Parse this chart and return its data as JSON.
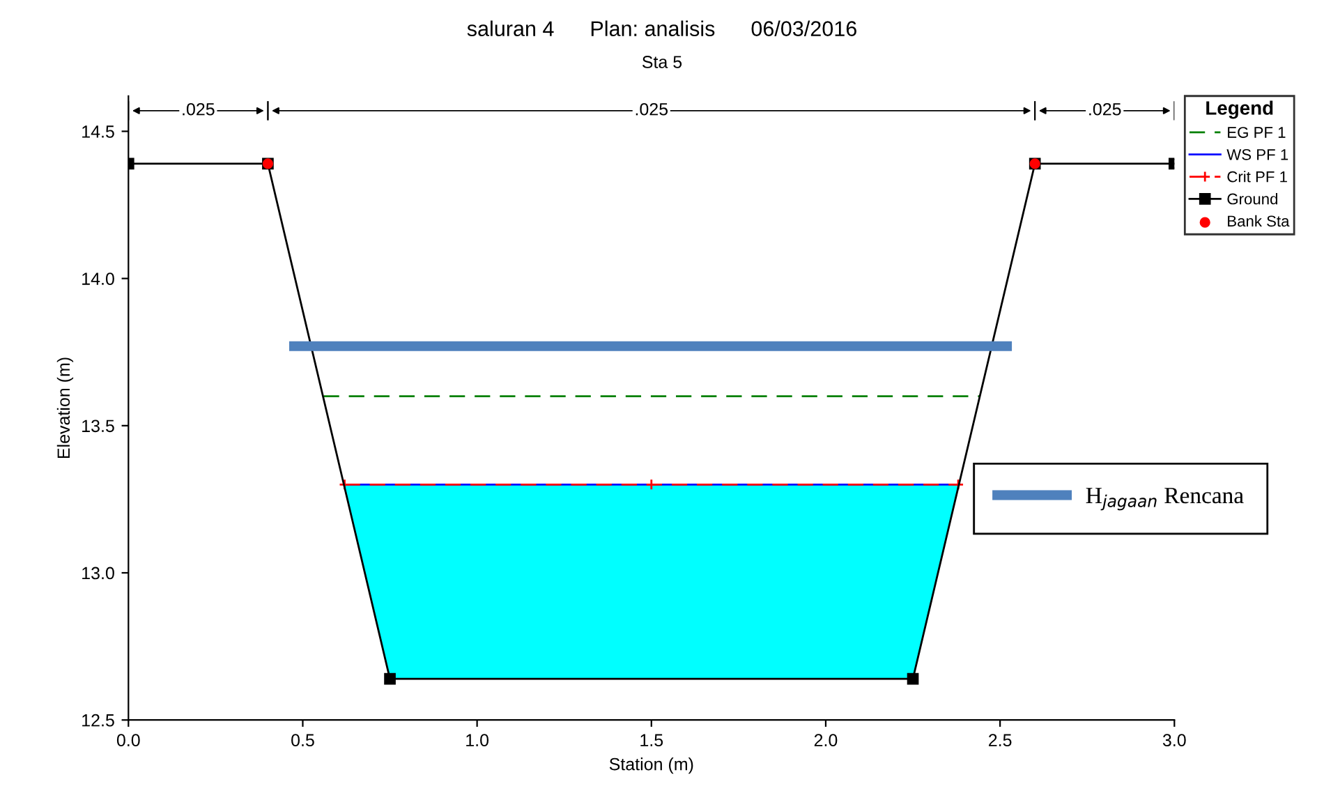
{
  "chart_data": {
    "type": "line",
    "title": "saluran 4      Plan: analisis      06/03/2016",
    "subtitle": "Sta 5",
    "xlabel": "Station (m)",
    "ylabel": "Elevation (m)",
    "xlim": [
      0,
      3.0
    ],
    "ylim": [
      12.5,
      14.62
    ],
    "xticks": [
      {
        "value": 0,
        "label": "0.0"
      },
      0.5,
      {
        "value": 1,
        "label": "1.0"
      },
      1.5,
      {
        "value": 2,
        "label": "2.0"
      },
      2.5,
      {
        "value": 3,
        "label": "3.0"
      }
    ],
    "yticks": [
      12.5,
      {
        "value": 13,
        "label": "13.0"
      },
      13.5,
      {
        "value": 14,
        "label": "14.0"
      },
      14.5
    ],
    "grid": false,
    "legend": "right",
    "legend_title": "Legend",
    "annotations": [
      {
        "text": ".025",
        "x": 0.2,
        "y": 14.57
      },
      {
        "text": ".025",
        "x": 1.5,
        "y": 14.57
      },
      {
        "text": ".025",
        "x": 2.8,
        "y": 14.57
      }
    ],
    "series": [
      {
        "name": "EG PF 1",
        "color": "#008000",
        "line_style": "dashed",
        "marker": "none",
        "x": [
          0.56,
          2.44
        ],
        "values": [
          13.6,
          13.6
        ]
      },
      {
        "name": "WS PF 1",
        "type": "area",
        "color": "#00ffff",
        "x": [
          0.62,
          0.75,
          2.25,
          2.38
        ],
        "values": [
          13.3,
          13.3,
          13.3,
          13.3
        ]
      },
      {
        "name": "Crit PF 1",
        "color": "#ff0000",
        "line_style": "dashed",
        "marker": "cross",
        "x": [
          0.62,
          1.5,
          2.38
        ],
        "values": [
          13.3,
          13.3,
          13.3
        ]
      },
      {
        "name": "Ground",
        "color": "#000000",
        "line_style": "solid",
        "marker": "square",
        "x": [
          0,
          0.4,
          0.75,
          2.25,
          2.6,
          3.0
        ],
        "values": [
          14.39,
          14.39,
          12.64,
          12.64,
          14.39,
          14.39
        ]
      },
      {
        "name": "Bank Sta",
        "type": "scatter",
        "color": "#ff0000",
        "marker": "circle",
        "x": [
          0.4,
          2.6
        ],
        "values": [
          14.39,
          14.39
        ]
      },
      {
        "name": "H$_{jagaan}$ Rencana",
        "color": "#4f81bd",
        "line_style": "solid",
        "marker": "none",
        "x": [
          0.475,
          2.52
        ],
        "values": [
          13.77,
          13.77
        ]
      }
    ]
  }
}
